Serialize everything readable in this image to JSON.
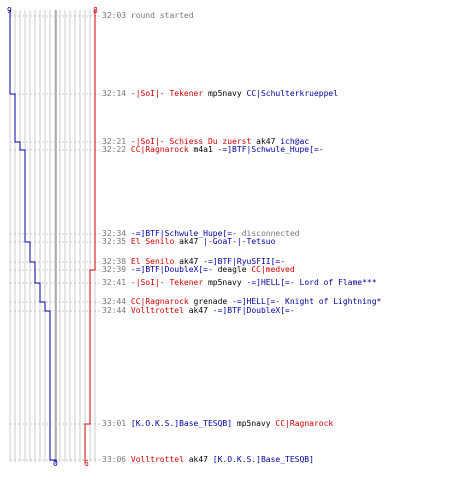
{
  "score": {
    "blue_start": "9",
    "red_start": "8",
    "blue_end": "0",
    "red_end": "6"
  },
  "colors": {
    "blue": "#0000a0",
    "red": "#d00000",
    "grid": "#b8b8b8",
    "text": "#777777"
  },
  "events": [
    {
      "time": "32:03",
      "parts": [
        {
          "c": "sys",
          "t": "round started"
        }
      ]
    },
    {
      "time": "32:14",
      "parts": [
        {
          "c": "red",
          "t": "-|SoI|- Tekener"
        },
        {
          "c": "w",
          "t": " mp5navy "
        },
        {
          "c": "blue",
          "t": "CC|Schulterkrueppel"
        }
      ]
    },
    {
      "time": "32:21",
      "parts": [
        {
          "c": "red",
          "t": "-|SoI|- Schiess Du zuerst"
        },
        {
          "c": "w",
          "t": " ak47 "
        },
        {
          "c": "blue",
          "t": "ich@ac"
        }
      ]
    },
    {
      "time": "32:22",
      "parts": [
        {
          "c": "red",
          "t": "CC|Ragnarock"
        },
        {
          "c": "w",
          "t": " m4a1 "
        },
        {
          "c": "blue",
          "t": "-=]BTF|Schwule_Hupe[=-"
        }
      ]
    },
    {
      "time": "32:34",
      "parts": [
        {
          "c": "blue",
          "t": "-=]BTF|Schwule_Hupe[=-"
        },
        {
          "c": "sys",
          "t": " disconnected"
        }
      ]
    },
    {
      "time": "32:35",
      "parts": [
        {
          "c": "red",
          "t": "El Senilo"
        },
        {
          "c": "w",
          "t": " ak47 "
        },
        {
          "c": "blue",
          "t": "|-GoaT-|-Tetsuo"
        }
      ]
    },
    {
      "time": "32:38",
      "parts": [
        {
          "c": "red",
          "t": "El Senilo"
        },
        {
          "c": "w",
          "t": " ak47 "
        },
        {
          "c": "blue",
          "t": "-=]BTF|RyuSFII[=-"
        }
      ]
    },
    {
      "time": "32:39",
      "parts": [
        {
          "c": "blue",
          "t": "-=]BTF|DoubleX[=-"
        },
        {
          "c": "w",
          "t": " deagle "
        },
        {
          "c": "red",
          "t": "CC|medved"
        }
      ]
    },
    {
      "time": "32:41",
      "parts": [
        {
          "c": "red",
          "t": "-|SoI|- Tekener"
        },
        {
          "c": "w",
          "t": " mp5navy "
        },
        {
          "c": "blue",
          "t": "-=]HELL[=- Lord of Flame***"
        }
      ]
    },
    {
      "time": "32:44",
      "parts": [
        {
          "c": "red",
          "t": "CC|Ragnarock"
        },
        {
          "c": "w",
          "t": " grenade "
        },
        {
          "c": "blue",
          "t": "-=]HELL[=- Knight of Lightning*"
        }
      ]
    },
    {
      "time": "32:44",
      "parts": [
        {
          "c": "red",
          "t": "Volltrottel"
        },
        {
          "c": "w",
          "t": " ak47 "
        },
        {
          "c": "blue",
          "t": "-=]BTF|DoubleX[=-"
        }
      ]
    },
    {
      "time": "33:01",
      "parts": [
        {
          "c": "blue",
          "t": "[K.O.K.S.]Base_TESQB]"
        },
        {
          "c": "w",
          "t": " mp5navy "
        },
        {
          "c": "red",
          "t": "CC|Ragnarock"
        }
      ]
    },
    {
      "time": "33:06",
      "parts": [
        {
          "c": "red",
          "t": "Volltrottel"
        },
        {
          "c": "w",
          "t": " ak47 "
        },
        {
          "c": "blue",
          "t": "[K.O.K.S.]Base_TESQB]"
        }
      ]
    }
  ]
}
